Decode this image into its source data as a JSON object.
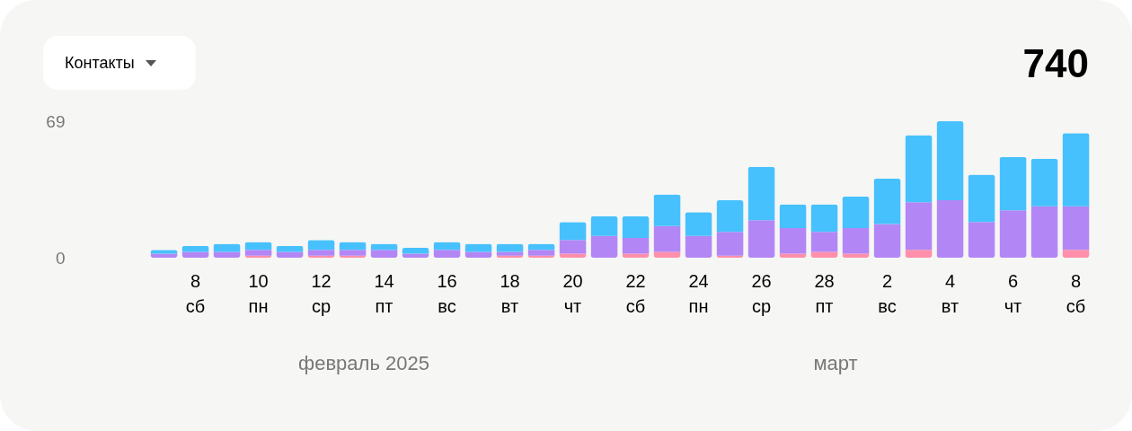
{
  "chart_data": {
    "type": "bar",
    "title": "Контакты",
    "stacked": true,
    "categories": [
      null,
      "8 сб",
      null,
      "10 пн",
      null,
      "12 ср",
      null,
      "14 пт",
      null,
      "16 вс",
      null,
      "18 вт",
      null,
      "20 чт",
      null,
      "22 сб",
      null,
      "24 пн",
      null,
      "26 ср",
      null,
      "28 пт",
      null,
      "2 вс",
      null,
      "4 вт",
      null,
      "6 чт",
      null,
      "8 сб"
    ],
    "series": [
      {
        "color": "#ff8fab",
        "values": [
          0,
          0,
          0,
          1,
          0,
          1,
          1,
          0,
          0,
          0,
          0,
          1,
          1,
          2,
          0,
          2,
          3,
          0,
          1,
          0,
          2,
          3,
          2,
          0,
          4,
          0,
          0,
          0,
          0,
          4
        ]
      },
      {
        "color": "#b386f6",
        "values": [
          2,
          3,
          3,
          3,
          3,
          3,
          3,
          4,
          2,
          4,
          3,
          2,
          3,
          7,
          11,
          8,
          13,
          11,
          12,
          19,
          13,
          10,
          13,
          17,
          24,
          29,
          18,
          24,
          26,
          22
        ]
      },
      {
        "color": "#46c1fd",
        "values": [
          2,
          3,
          4,
          4,
          3,
          5,
          4,
          3,
          3,
          4,
          4,
          4,
          3,
          9,
          10,
          11,
          16,
          12,
          16,
          27,
          12,
          14,
          16,
          23,
          34,
          40,
          24,
          27,
          24,
          37
        ]
      }
    ],
    "ylim": [
      0,
      69
    ],
    "yticks": [
      0,
      69
    ],
    "grid": false,
    "annotations": [
      "740",
      "февраль 2025",
      "март"
    ]
  }
}
